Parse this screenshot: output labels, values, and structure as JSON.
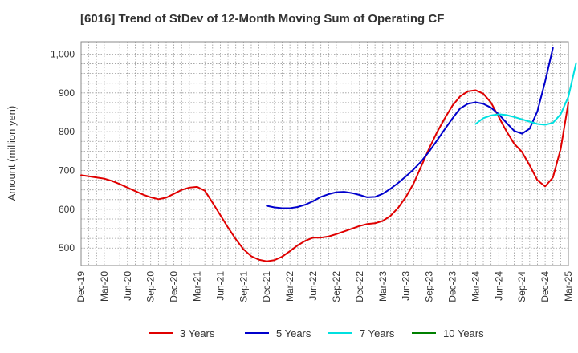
{
  "chart_data": {
    "type": "line",
    "title": "[6016]  Trend of StDev of 12-Month Moving Sum of Operating CF",
    "xlabel": "",
    "ylabel": "Amount (million yen)",
    "ylim": [
      455,
      1032
    ],
    "yticks": [
      500,
      600,
      700,
      800,
      900,
      1000
    ],
    "ytick_labels": [
      "500",
      "600",
      "700",
      "800",
      "900",
      "1,000"
    ],
    "x_start": "Dec-19",
    "x_end": "Mar-25",
    "x_tick_labels": [
      "Dec-19",
      "Mar-20",
      "Jun-20",
      "Sep-20",
      "Dec-20",
      "Mar-21",
      "Jun-21",
      "Sep-21",
      "Dec-21",
      "Mar-22",
      "Jun-22",
      "Sep-22",
      "Dec-22",
      "Mar-23",
      "Jun-23",
      "Sep-23",
      "Dec-23",
      "Mar-24",
      "Jun-24",
      "Sep-24",
      "Dec-24",
      "Mar-25"
    ],
    "grid": true,
    "legend_position": "bottom",
    "series": [
      {
        "name": "3 Years",
        "color": "#e00000",
        "start_index": 0,
        "values": [
          688,
          685,
          682,
          679,
          673,
          665,
          656,
          647,
          638,
          631,
          626,
          630,
          640,
          650,
          656,
          658,
          648,
          617,
          585,
          553,
          523,
          497,
          479,
          470,
          466,
          469,
          478,
          492,
          507,
          519,
          527,
          527,
          530,
          536,
          543,
          550,
          557,
          562,
          564,
          570,
          583,
          604,
          632,
          667,
          712,
          757,
          798,
          834,
          867,
          891,
          904,
          907,
          898,
          875,
          838,
          801,
          769,
          748,
          713,
          675,
          659,
          682,
          755,
          875
        ]
      },
      {
        "name": "5 Years",
        "color": "#0000cc",
        "start_index": 24,
        "values": [
          609,
          605,
          603,
          603,
          606,
          612,
          621,
          632,
          639,
          644,
          645,
          642,
          637,
          631,
          632,
          640,
          653,
          668,
          685,
          703,
          724,
          749,
          777,
          806,
          834,
          860,
          872,
          876,
          872,
          862,
          845,
          823,
          802,
          795,
          808,
          853,
          930,
          1016
        ]
      },
      {
        "name": "7 Years",
        "color": "#00e0e0",
        "start_index": 51,
        "values": [
          820,
          835,
          842,
          845,
          843,
          838,
          832,
          826,
          820,
          818,
          823,
          845,
          890,
          977
        ]
      },
      {
        "name": "10 Years",
        "color": "#008000",
        "start_index": 0,
        "values": []
      }
    ]
  }
}
